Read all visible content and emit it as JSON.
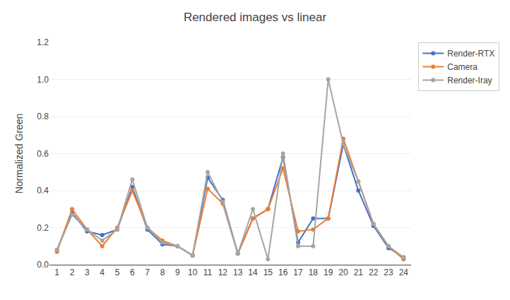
{
  "chart_data": {
    "type": "line",
    "title": "Rendered images vs linear",
    "ylabel": "Normalized Green",
    "x": [
      1,
      2,
      3,
      4,
      5,
      6,
      7,
      8,
      9,
      10,
      11,
      12,
      13,
      14,
      15,
      16,
      17,
      18,
      19,
      20,
      21,
      22,
      23,
      24
    ],
    "series": [
      {
        "name": "Render-RTX",
        "color": "#4472C4",
        "values": [
          0.08,
          0.28,
          0.18,
          0.16,
          0.19,
          0.42,
          0.19,
          0.11,
          0.1,
          0.05,
          0.47,
          0.35,
          0.06,
          0.25,
          0.3,
          0.58,
          0.12,
          0.25,
          0.25,
          0.65,
          0.4,
          0.21,
          0.09,
          0.04
        ]
      },
      {
        "name": "Camera",
        "color": "#ED7D31",
        "values": [
          0.07,
          0.3,
          0.19,
          0.1,
          0.2,
          0.4,
          0.2,
          0.13,
          0.1,
          0.05,
          0.41,
          0.33,
          0.06,
          0.25,
          0.3,
          0.52,
          0.18,
          0.19,
          0.25,
          0.68,
          0.45,
          0.22,
          0.1,
          0.03
        ]
      },
      {
        "name": "Render-Iray",
        "color": "#A5A5A5",
        "values": [
          0.08,
          0.27,
          0.19,
          0.13,
          0.19,
          0.46,
          0.2,
          0.12,
          0.1,
          0.05,
          0.5,
          0.34,
          0.06,
          0.3,
          0.03,
          0.6,
          0.1,
          0.1,
          1.0,
          0.65,
          0.45,
          0.22,
          0.1,
          0.04
        ]
      }
    ],
    "xlim": [
      0.5,
      24.5
    ],
    "xticks": [
      1,
      2,
      3,
      4,
      5,
      6,
      7,
      8,
      9,
      10,
      11,
      12,
      13,
      14,
      15,
      16,
      17,
      18,
      19,
      20,
      21,
      22,
      23,
      24
    ],
    "ylim": [
      0,
      1.2
    ],
    "yticks": [
      {
        "value": 0,
        "label": "0.0"
      },
      0.2,
      0.4,
      0.6,
      0.8,
      {
        "value": 1.0,
        "label": "1.0"
      },
      1.2
    ],
    "grid": "y",
    "legend": "right",
    "marker": "circle"
  }
}
